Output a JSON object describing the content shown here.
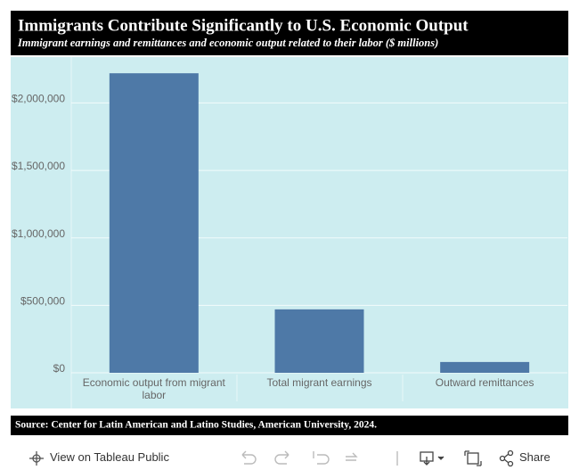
{
  "chart_data": {
    "type": "bar",
    "title": "Immigrants Contribute Significantly to U.S. Economic Output",
    "subtitle": "Immigrant earnings and remittances and economic output related to their labor ($ millions)",
    "categories": [
      "Economic output from migrant labor",
      "Total migrant earnings",
      "Outward remittances"
    ],
    "values": [
      2220000,
      470000,
      80000
    ],
    "color": "#4e79a7",
    "ylim": [
      0,
      2340000
    ],
    "yticks": [
      {
        "value": 0,
        "label": "$0"
      },
      {
        "value": 500000,
        "label": "$500,000"
      },
      {
        "value": 1000000,
        "label": "$1,000,000"
      },
      {
        "value": 1500000,
        "label": "$1,500,000"
      },
      {
        "value": 2000000,
        "label": "$2,000,000"
      }
    ],
    "grid": true,
    "source": "Source:  Center for Latin American and Latino Studies, American University, 2024."
  },
  "toolbar": {
    "view_label": "View on Tableau Public",
    "share_label": "Share"
  }
}
